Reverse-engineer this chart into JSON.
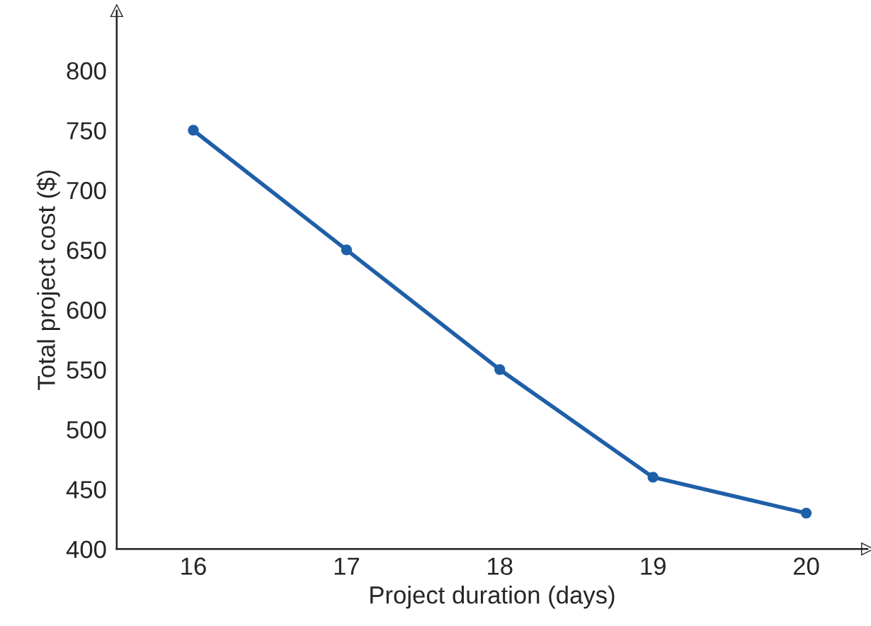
{
  "chart_data": {
    "type": "line",
    "xlabel": "Project duration (days)",
    "ylabel": "Total project cost ($)",
    "x": [
      16,
      17,
      18,
      19,
      20
    ],
    "series": [
      {
        "color": "#1f5fa8",
        "values": [
          750,
          650,
          550,
          460,
          430
        ]
      }
    ],
    "marker": "circle",
    "line_style": "solid",
    "grid": false,
    "legend": false,
    "xlim": [
      15.5,
      20.4
    ],
    "ylim": [
      400,
      850
    ],
    "xticks": [
      16,
      17,
      18,
      19,
      20
    ],
    "yticks": [
      400,
      450,
      500,
      550,
      600,
      650,
      700,
      750,
      800
    ]
  }
}
